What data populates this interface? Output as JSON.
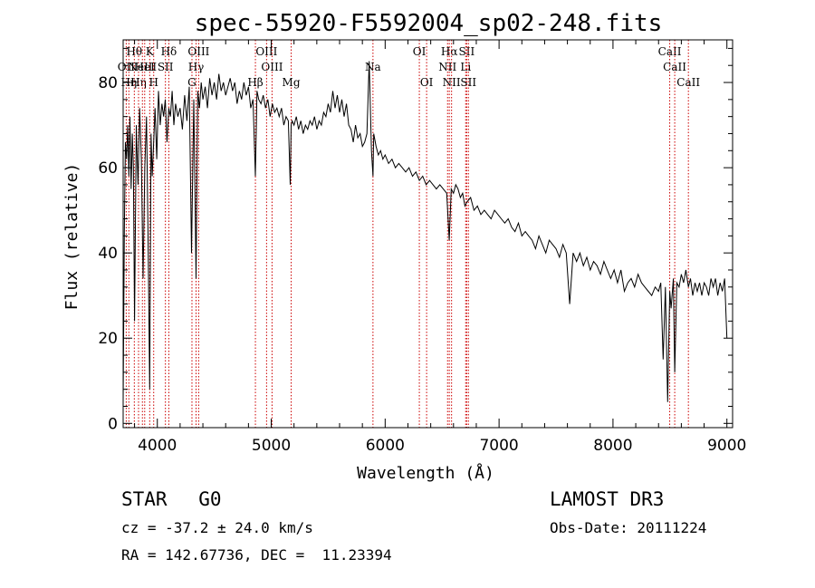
{
  "chart_data": {
    "type": "line",
    "title": "spec-55920-F5592004_sp02-248.fits",
    "xlabel": "Wavelength (Å)",
    "ylabel": "Flux (relative)",
    "xlim": [
      3700,
      9050
    ],
    "ylim": [
      -1,
      90
    ],
    "xticks": [
      4000,
      5000,
      6000,
      7000,
      8000,
      9000
    ],
    "yticks": [
      0,
      20,
      40,
      60,
      80
    ],
    "grid": false,
    "line_color": "#cc0000",
    "series": [
      {
        "name": "flux",
        "x": [
          3700,
          3710,
          3720,
          3730,
          3740,
          3750,
          3760,
          3770,
          3780,
          3790,
          3800,
          3815,
          3830,
          3845,
          3860,
          3875,
          3890,
          3905,
          3920,
          3933,
          3945,
          3955,
          3968,
          3980,
          3995,
          4010,
          4025,
          4040,
          4055,
          4070,
          4085,
          4101,
          4115,
          4130,
          4145,
          4160,
          4180,
          4200,
          4220,
          4240,
          4260,
          4280,
          4300,
          4320,
          4340,
          4355,
          4370,
          4385,
          4400,
          4420,
          4440,
          4460,
          4480,
          4500,
          4520,
          4540,
          4560,
          4580,
          4600,
          4620,
          4640,
          4660,
          4680,
          4700,
          4720,
          4740,
          4760,
          4780,
          4800,
          4820,
          4840,
          4861,
          4875,
          4890,
          4910,
          4930,
          4950,
          4970,
          4990,
          5010,
          5030,
          5050,
          5070,
          5090,
          5110,
          5130,
          5150,
          5167,
          5175,
          5183,
          5200,
          5220,
          5240,
          5260,
          5280,
          5300,
          5320,
          5340,
          5360,
          5380,
          5400,
          5420,
          5440,
          5460,
          5480,
          5500,
          5520,
          5540,
          5560,
          5580,
          5600,
          5620,
          5640,
          5660,
          5680,
          5700,
          5720,
          5740,
          5760,
          5780,
          5800,
          5820,
          5840,
          5860,
          5880,
          5893,
          5900,
          5920,
          5940,
          5960,
          5980,
          6000,
          6030,
          6060,
          6090,
          6120,
          6150,
          6180,
          6210,
          6240,
          6270,
          6300,
          6330,
          6360,
          6390,
          6420,
          6450,
          6480,
          6510,
          6540,
          6563,
          6580,
          6600,
          6620,
          6640,
          6660,
          6680,
          6700,
          6720,
          6750,
          6780,
          6810,
          6840,
          6870,
          6900,
          6930,
          6960,
          6990,
          7020,
          7050,
          7080,
          7110,
          7140,
          7170,
          7200,
          7230,
          7260,
          7290,
          7320,
          7350,
          7380,
          7410,
          7440,
          7470,
          7500,
          7530,
          7560,
          7590,
          7620,
          7650,
          7680,
          7710,
          7740,
          7770,
          7800,
          7830,
          7860,
          7890,
          7920,
          7950,
          7980,
          8010,
          8040,
          8070,
          8100,
          8130,
          8160,
          8190,
          8220,
          8250,
          8280,
          8310,
          8340,
          8370,
          8400,
          8420,
          8440,
          8460,
          8480,
          8498,
          8510,
          8530,
          8542,
          8560,
          8580,
          8600,
          8620,
          8640,
          8662,
          8680,
          8700,
          8720,
          8740,
          8760,
          8780,
          8800,
          8820,
          8840,
          8860,
          8880,
          8900,
          8920,
          8940,
          8960,
          8980,
          9000
        ],
        "values": [
          5,
          45,
          66,
          62,
          70,
          58,
          72,
          55,
          68,
          60,
          24,
          70,
          56,
          74,
          62,
          34,
          60,
          72,
          40,
          8,
          68,
          58,
          66,
          74,
          62,
          78,
          70,
          75,
          72,
          76,
          66,
          74,
          72,
          78,
          70,
          75,
          72,
          74,
          69,
          77,
          71,
          79,
          40,
          76,
          34,
          78,
          74,
          80,
          76,
          79,
          74,
          81,
          77,
          80,
          76,
          82,
          78,
          80,
          77,
          79,
          81,
          78,
          80,
          75,
          78,
          76,
          80,
          77,
          79,
          74,
          76,
          58,
          78,
          76,
          75,
          77,
          74,
          76,
          72,
          75,
          73,
          74,
          72,
          74,
          70,
          72,
          71,
          56,
          70,
          71,
          70,
          72,
          69,
          71,
          68,
          70,
          69,
          71,
          70,
          72,
          69,
          71,
          70,
          73,
          72,
          75,
          73,
          78,
          74,
          77,
          73,
          76,
          72,
          75,
          70,
          69,
          66,
          70,
          67,
          68,
          65,
          66,
          68,
          85,
          64,
          58,
          68,
          65,
          63,
          64,
          62,
          63,
          61,
          62,
          60,
          61,
          60,
          59,
          60,
          58,
          59,
          57,
          58,
          56,
          57,
          56,
          55,
          56,
          55,
          54,
          43,
          55,
          54,
          56,
          55,
          53,
          54,
          51,
          52,
          53,
          50,
          51,
          49,
          50,
          49,
          48,
          50,
          49,
          48,
          47,
          48,
          46,
          45,
          47,
          44,
          45,
          44,
          43,
          41,
          44,
          42,
          40,
          43,
          42,
          41,
          39,
          42,
          40,
          28,
          40,
          38,
          40,
          37,
          39,
          36,
          38,
          37,
          35,
          38,
          36,
          34,
          36,
          33,
          36,
          31,
          33,
          34,
          32,
          35,
          33,
          32,
          31,
          30,
          32,
          31,
          33,
          15,
          32,
          5,
          31,
          27,
          34,
          12,
          33,
          32,
          35,
          33,
          36,
          32,
          34,
          30,
          33,
          31,
          33,
          30,
          33,
          32,
          30,
          34,
          32,
          34,
          30,
          33,
          31,
          34,
          20
        ]
      }
    ],
    "lines": [
      {
        "wavelength": 3727,
        "label": "OII",
        "row": 2
      },
      {
        "wavelength": 3750,
        "label": "Hη",
        "row": 3
      },
      {
        "wavelength": 3798,
        "label": "Hθ",
        "row": 1
      },
      {
        "wavelength": 3835,
        "label": "Hη",
        "row": 3
      },
      {
        "wavelength": 3869,
        "label": "NeIII",
        "row": 2
      },
      {
        "wavelength": 3889,
        "label": "HeI",
        "row": 2
      },
      {
        "wavelength": 3933,
        "label": "K",
        "row": 1
      },
      {
        "wavelength": 3968,
        "label": "H",
        "row": 3
      },
      {
        "wavelength": 4071,
        "label": "SII",
        "row": 2
      },
      {
        "wavelength": 4101,
        "label": "Hδ",
        "row": 1
      },
      {
        "wavelength": 4304,
        "label": "G",
        "row": 3
      },
      {
        "wavelength": 4340,
        "label": "Hγ",
        "row": 2
      },
      {
        "wavelength": 4363,
        "label": "OIII",
        "row": 1
      },
      {
        "wavelength": 4861,
        "label": "Hβ",
        "row": 3
      },
      {
        "wavelength": 4959,
        "label": "OIII",
        "row": 1
      },
      {
        "wavelength": 5007,
        "label": "OIII",
        "row": 2
      },
      {
        "wavelength": 5175,
        "label": "Mg",
        "row": 3
      },
      {
        "wavelength": 5893,
        "label": "Na",
        "row": 2
      },
      {
        "wavelength": 6300,
        "label": "OI",
        "row": 1
      },
      {
        "wavelength": 6364,
        "label": "OI",
        "row": 3
      },
      {
        "wavelength": 6548,
        "label": "NII",
        "row": 2
      },
      {
        "wavelength": 6563,
        "label": "Hα",
        "row": 1
      },
      {
        "wavelength": 6583,
        "label": "NII",
        "row": 3
      },
      {
        "wavelength": 6707,
        "label": "Li",
        "row": 2
      },
      {
        "wavelength": 6716,
        "label": "SII",
        "row": 1
      },
      {
        "wavelength": 6731,
        "label": "SII",
        "row": 3
      },
      {
        "wavelength": 8498,
        "label": "CaII",
        "row": 1
      },
      {
        "wavelength": 8542,
        "label": "CaII",
        "row": 2
      },
      {
        "wavelength": 8662,
        "label": "CaII",
        "row": 3
      }
    ]
  },
  "info": {
    "class": "STAR",
    "subclass": "G0",
    "survey": "LAMOST DR3",
    "cz": "cz = -37.2 ± 24.0 km/s",
    "obs_date": "Obs-Date: 20111224",
    "coords": "RA = 142.67736, DEC =  11.23394"
  }
}
